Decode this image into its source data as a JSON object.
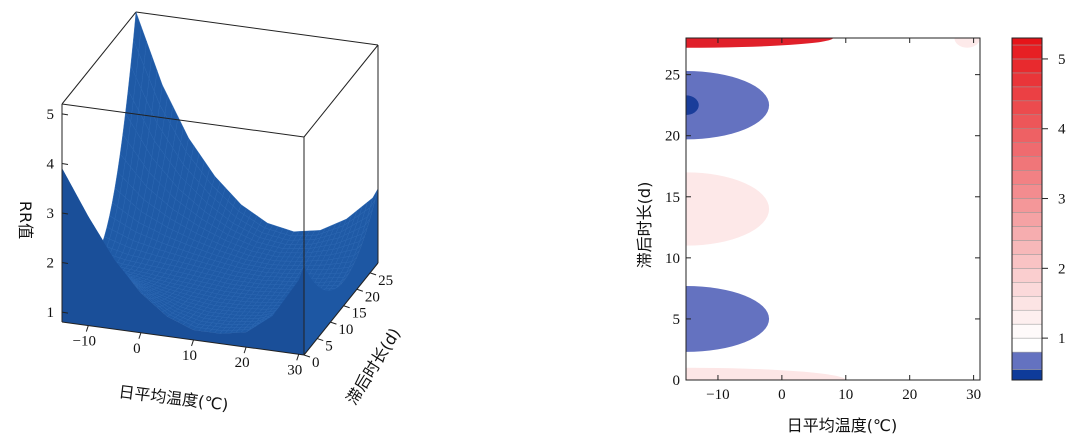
{
  "chart_data": [
    {
      "type": "surface3d",
      "xlabel": "日平均温度(℃)",
      "ylabel": "滞后时长(d)",
      "zlabel": "RR值",
      "x_ticks": [
        -10,
        0,
        10,
        20,
        30
      ],
      "y_ticks": [
        0,
        5,
        10,
        15,
        20,
        25
      ],
      "z_ticks": [
        1,
        2,
        3,
        4,
        5
      ],
      "xlim": [
        -15,
        31
      ],
      "ylim": [
        0,
        28
      ],
      "zlim": [
        0.8,
        5.2
      ],
      "surface_color": "#1f5aa6",
      "series": [
        {
          "lag": 0,
          "x": [
            -15,
            -10,
            -5,
            0,
            5,
            10,
            15,
            20,
            25,
            30,
            31
          ],
          "rr": [
            3.9,
            3.0,
            2.2,
            1.6,
            1.2,
            1.0,
            1.0,
            1.1,
            1.5,
            2.3,
            2.6
          ]
        },
        {
          "lag": 14,
          "x": [
            -15,
            -10,
            -5,
            0,
            5,
            10,
            15,
            20,
            25,
            30,
            31
          ],
          "rr": [
            1.3,
            1.2,
            1.15,
            1.1,
            1.05,
            1.0,
            1.0,
            1.05,
            1.1,
            1.2,
            1.3
          ]
        },
        {
          "lag": 28,
          "x": [
            -15,
            -10,
            -5,
            0,
            5,
            10,
            15,
            20,
            25,
            30,
            31
          ],
          "rr": [
            5.2,
            3.8,
            2.8,
            2.1,
            1.6,
            1.3,
            1.2,
            1.3,
            1.6,
            2.1,
            2.3
          ]
        }
      ]
    },
    {
      "type": "contour",
      "xlabel": "日平均温度(℃)",
      "ylabel": "滞后时长(d)",
      "x_ticks": [
        -10,
        0,
        10,
        20,
        30
      ],
      "y_ticks": [
        0,
        5,
        10,
        15,
        20,
        25
      ],
      "xlim": [
        -15,
        31
      ],
      "ylim": [
        0,
        28
      ],
      "colorbar_ticks": [
        1,
        2,
        3,
        4,
        5
      ],
      "colorbar_range": [
        0.4,
        5.3
      ],
      "regions": [
        {
          "kind": "high",
          "level": 5.0,
          "x_range": [
            -15,
            8
          ],
          "lag_center": 28,
          "lag_half_width": 0.8,
          "color": "#e0202a"
        },
        {
          "kind": "high",
          "level": 1.3,
          "x_range": [
            -15,
            10
          ],
          "lag_center": 0,
          "lag_half_width": 1.0,
          "color": "#fde6e6"
        },
        {
          "kind": "high",
          "level": 1.2,
          "x_range": [
            -15,
            -2
          ],
          "lag_center": 14,
          "lag_half_width": 3.0,
          "color": "#fde8e8"
        },
        {
          "kind": "low",
          "level": 0.7,
          "x_range": [
            -15,
            -2
          ],
          "lag_center": 22.5,
          "lag_half_width": 2.8,
          "color": "#6472c0"
        },
        {
          "kind": "low",
          "level": 0.7,
          "x_range": [
            -15,
            -2
          ],
          "lag_center": 5,
          "lag_half_width": 2.7,
          "color": "#6472c0"
        },
        {
          "kind": "low",
          "level": 0.5,
          "x_range": [
            -15,
            -13
          ],
          "lag_center": 22.5,
          "lag_half_width": 0.8,
          "color": "#1a3d9a"
        },
        {
          "kind": "high",
          "level": 1.1,
          "x_range": [
            27,
            31
          ],
          "lag_center": 28,
          "lag_half_width": 0.8,
          "color": "#fdeaea"
        }
      ]
    }
  ]
}
